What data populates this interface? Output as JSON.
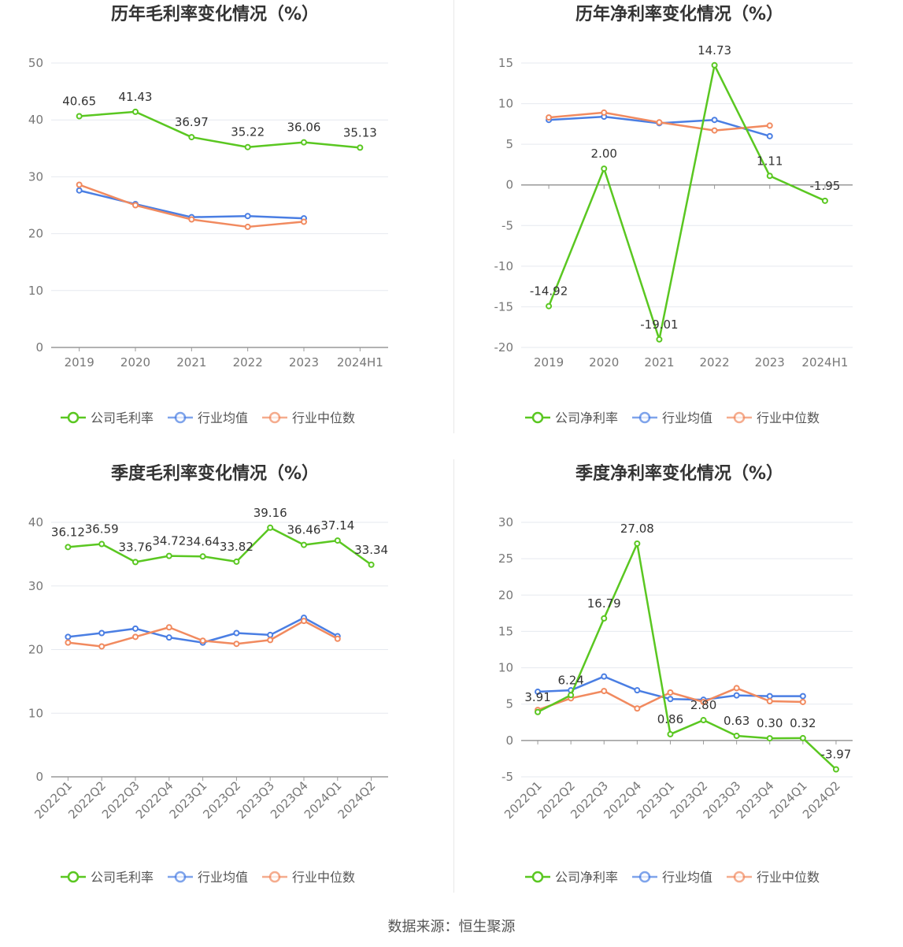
{
  "colors": {
    "company": "#5ac721",
    "average": "#4a7ee3",
    "median": "#f18a5f",
    "grid": "#e6e9ef",
    "axis": "#999999"
  },
  "footer": {
    "source": "数据来源：恒生聚源"
  },
  "chart_data": [
    {
      "type": "line",
      "title": "历年毛利率变化情况（%）",
      "categories": [
        "2019",
        "2020",
        "2021",
        "2022",
        "2023",
        "2024H1"
      ],
      "ylim": [
        0,
        50
      ],
      "yticks": [
        0,
        10,
        20,
        30,
        40,
        50
      ],
      "series": [
        {
          "name": "公司毛利率",
          "key": "company",
          "values": [
            40.65,
            41.43,
            36.97,
            35.22,
            36.06,
            35.13
          ],
          "labels": [
            "40.65",
            "41.43",
            "36.97",
            "35.22",
            "36.06",
            "35.13"
          ]
        },
        {
          "name": "行业均值",
          "key": "average",
          "values": [
            27.6,
            25.2,
            22.9,
            23.1,
            22.7,
            null
          ]
        },
        {
          "name": "行业中位数",
          "key": "median",
          "values": [
            28.6,
            25.0,
            22.5,
            21.2,
            22.1,
            null
          ]
        }
      ],
      "rotate_ticks": false
    },
    {
      "type": "line",
      "title": "历年净利率变化情况（%）",
      "categories": [
        "2019",
        "2020",
        "2021",
        "2022",
        "2023",
        "2024H1"
      ],
      "ylim": [
        -20,
        15
      ],
      "yticks": [
        -20,
        -15,
        -10,
        -5,
        0,
        5,
        10,
        15
      ],
      "series": [
        {
          "name": "公司净利率",
          "key": "company",
          "values": [
            -14.92,
            2.0,
            -19.01,
            14.73,
            1.11,
            -1.95
          ],
          "labels": [
            "-14.92",
            "2.00",
            "-19.01",
            "14.73",
            "1.11",
            "-1.95"
          ]
        },
        {
          "name": "行业均值",
          "key": "average",
          "values": [
            8.0,
            8.4,
            7.6,
            8.0,
            6.0,
            null
          ]
        },
        {
          "name": "行业中位数",
          "key": "median",
          "values": [
            8.3,
            8.9,
            7.7,
            6.7,
            7.3,
            null
          ]
        }
      ],
      "rotate_ticks": false
    },
    {
      "type": "line",
      "title": "季度毛利率变化情况（%）",
      "categories": [
        "2022Q1",
        "2022Q2",
        "2022Q3",
        "2022Q4",
        "2023Q1",
        "2023Q2",
        "2023Q3",
        "2023Q4",
        "2024Q1",
        "2024Q2"
      ],
      "ylim": [
        0,
        40
      ],
      "yticks": [
        0,
        10,
        20,
        30,
        40
      ],
      "series": [
        {
          "name": "公司毛利率",
          "key": "company",
          "values": [
            36.12,
            36.59,
            33.76,
            34.72,
            34.64,
            33.82,
            39.16,
            36.46,
            37.14,
            33.34
          ],
          "labels": [
            "36.12",
            "36.59",
            "33.76",
            "34.72",
            "34.64",
            "33.82",
            "39.16",
            "36.46",
            "37.14",
            "33.34"
          ]
        },
        {
          "name": "行业均值",
          "key": "average",
          "values": [
            22.0,
            22.6,
            23.3,
            21.9,
            21.1,
            22.6,
            22.3,
            25.0,
            22.1,
            null
          ]
        },
        {
          "name": "行业中位数",
          "key": "median",
          "values": [
            21.1,
            20.5,
            22.0,
            23.5,
            21.4,
            20.9,
            21.5,
            24.5,
            21.7,
            null
          ]
        }
      ],
      "rotate_ticks": true
    },
    {
      "type": "line",
      "title": "季度净利率变化情况（%）",
      "categories": [
        "2022Q1",
        "2022Q2",
        "2022Q3",
        "2022Q4",
        "2023Q1",
        "2023Q2",
        "2023Q3",
        "2023Q4",
        "2024Q1",
        "2024Q2"
      ],
      "ylim": [
        -5,
        30
      ],
      "yticks": [
        -5,
        0,
        5,
        10,
        15,
        20,
        25,
        30
      ],
      "series": [
        {
          "name": "公司净利率",
          "key": "company",
          "values": [
            3.91,
            6.24,
            16.79,
            27.08,
            0.86,
            2.8,
            0.63,
            0.3,
            0.32,
            -3.97
          ],
          "labels": [
            "3.91",
            "6.24",
            "16.79",
            "27.08",
            "0.86",
            "2.80",
            "0.63",
            "0.30",
            "0.32",
            "-3.97"
          ]
        },
        {
          "name": "行业均值",
          "key": "average",
          "values": [
            6.7,
            6.9,
            8.8,
            6.9,
            5.7,
            5.6,
            6.2,
            6.1,
            6.1,
            null
          ]
        },
        {
          "name": "行业中位数",
          "key": "median",
          "values": [
            4.2,
            5.8,
            6.8,
            4.4,
            6.6,
            5.3,
            7.2,
            5.4,
            5.3,
            null
          ]
        }
      ],
      "rotate_ticks": true
    }
  ]
}
